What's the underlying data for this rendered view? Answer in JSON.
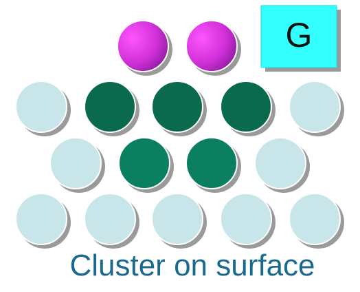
{
  "label": "G",
  "caption": "Cluster on surface"
}
